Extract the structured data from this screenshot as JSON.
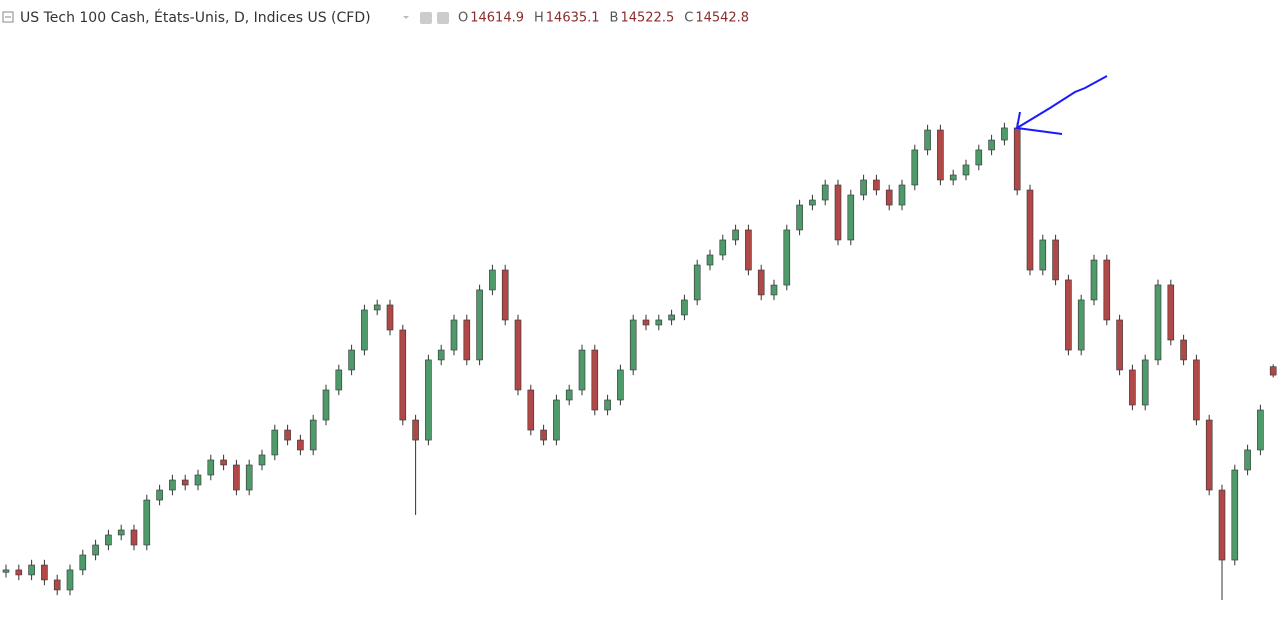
{
  "chart_data": {
    "type": "candlestick",
    "title": "US Tech 100 Cash, États-Unis, D, Indices US (CFD)",
    "ohlc_labels": [
      "O",
      "H",
      "B",
      "C"
    ],
    "up_color": "#4f9a6a",
    "down_color": "#b04848",
    "ylim": [
      12440,
      17420
    ],
    "open": [
      12850,
      12870,
      12827,
      12912,
      12784,
      12698,
      12870,
      12998,
      13084,
      13170,
      13213,
      13084,
      13470,
      13556,
      13642,
      13599,
      13685,
      13814,
      13771,
      13556,
      13771,
      13857,
      14071,
      13985,
      13900,
      14157,
      14415,
      14587,
      14758,
      15102,
      15145,
      14930,
      14157,
      13985,
      14673,
      14758,
      15016,
      14673,
      15274,
      15445,
      15016,
      14415,
      14071,
      13985,
      14329,
      14415,
      14758,
      14243,
      14329,
      14587,
      15016,
      14973,
      15016,
      15059,
      15188,
      15488,
      15574,
      15703,
      15789,
      15445,
      15231,
      15316,
      15789,
      16003,
      16046,
      16175,
      15703,
      16089,
      16218,
      16132,
      16003,
      16175,
      16476,
      16647,
      16218,
      16261,
      16347,
      16476,
      16561,
      16665,
      16132,
      15445,
      15703,
      15360,
      14758,
      15188,
      15531,
      15016,
      14587,
      14286,
      14673,
      15317,
      14844,
      14673,
      14157,
      13556,
      12955,
      13728,
      13900,
      14614.9
    ],
    "high": [
      12915,
      12915,
      12957,
      12957,
      12829,
      12915,
      13043,
      13129,
      13215,
      13258,
      13258,
      13515,
      13601,
      13687,
      13687,
      13730,
      13859,
      13859,
      13816,
      13816,
      13902,
      14116,
      14116,
      14030,
      14202,
      14460,
      14632,
      14803,
      15147,
      15190,
      15190,
      14975,
      14202,
      14718,
      14803,
      15061,
      15061,
      15319,
      15490,
      15490,
      15061,
      14460,
      14116,
      14374,
      14460,
      14803,
      14803,
      14374,
      14632,
      15061,
      15061,
      15061,
      15104,
      15233,
      15533,
      15619,
      15748,
      15834,
      15834,
      15490,
      15361,
      15834,
      16048,
      16091,
      16220,
      16220,
      16134,
      16263,
      16263,
      16177,
      16220,
      16521,
      16692,
      16692,
      16306,
      16392,
      16521,
      16606,
      16710,
      16710,
      16177,
      15748,
      15748,
      15405,
      15233,
      15576,
      15576,
      15061,
      14632,
      14718,
      15362,
      15362,
      14889,
      14718,
      14202,
      13601,
      13773,
      13945,
      14288,
      14635.1
    ],
    "low": [
      12805,
      12782,
      12782,
      12739,
      12653,
      12653,
      12825,
      12953,
      13039,
      13125,
      13039,
      13039,
      13425,
      13511,
      13554,
      13554,
      13640,
      13726,
      13511,
      13511,
      13726,
      13812,
      13940,
      13855,
      13855,
      14112,
      14370,
      14542,
      14713,
      15057,
      14885,
      14112,
      13342,
      13940,
      14628,
      14713,
      14628,
      14628,
      15229,
      14971,
      14370,
      14026,
      13940,
      13940,
      14284,
      14370,
      14198,
      14198,
      14284,
      14542,
      14928,
      14928,
      14971,
      15014,
      15143,
      15443,
      15529,
      15658,
      15400,
      15186,
      15186,
      15271,
      15744,
      15958,
      16001,
      15658,
      15658,
      16044,
      16087,
      15958,
      15958,
      16130,
      16431,
      16173,
      16173,
      16216,
      16302,
      16431,
      16516,
      16087,
      15400,
      15400,
      15315,
      14713,
      14713,
      15143,
      14971,
      14542,
      14241,
      14241,
      14628,
      14799,
      14628,
      14112,
      13511,
      12612,
      12910,
      13683,
      13855,
      14522.5
    ],
    "close": [
      12870,
      12827,
      12912,
      12784,
      12698,
      12870,
      12998,
      13084,
      13170,
      13213,
      13084,
      13470,
      13556,
      13642,
      13599,
      13685,
      13814,
      13771,
      13556,
      13771,
      13857,
      14071,
      13985,
      13900,
      14157,
      14415,
      14587,
      14758,
      15102,
      15145,
      14930,
      14157,
      13985,
      14673,
      14758,
      15016,
      14673,
      15274,
      15445,
      15016,
      14415,
      14071,
      13985,
      14329,
      14415,
      14758,
      14243,
      14329,
      14587,
      15016,
      14973,
      15016,
      15059,
      15188,
      15488,
      15574,
      15703,
      15789,
      15445,
      15231,
      15316,
      15789,
      16003,
      16046,
      16175,
      15703,
      16089,
      16218,
      16132,
      16003,
      16175,
      16476,
      16647,
      16218,
      16261,
      16347,
      16476,
      16561,
      16665,
      16132,
      15445,
      15703,
      15360,
      14758,
      15188,
      15531,
      15016,
      14587,
      14286,
      14673,
      15317,
      14844,
      14673,
      14157,
      13556,
      12955,
      13728,
      13900,
      14243,
      14542.8
    ]
  }
}
